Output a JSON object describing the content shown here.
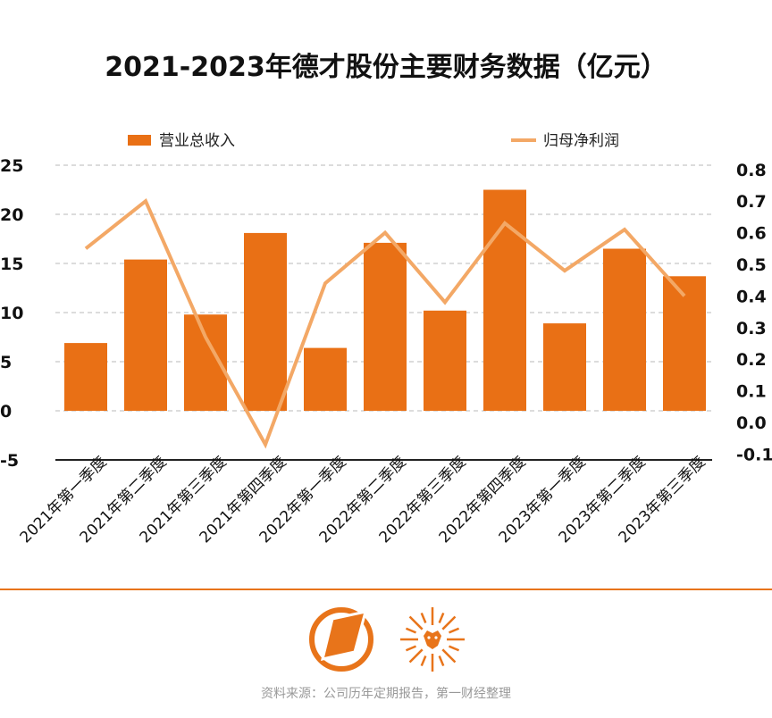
{
  "colors": {
    "bar": "#e97015",
    "line": "#f3a866",
    "accent": "#e8741a"
  },
  "logos": [
    "compass-logo",
    "lion-sun-logo"
  ],
  "footer": {
    "source": "资料来源：公司历年定期报告，第一财经整理"
  },
  "chart_data": {
    "type": "bar+line",
    "title": "2021-2023年德才股份主要财务数据（亿元）",
    "categories": [
      "2021年第一季度",
      "2021年第二季度",
      "2021年第三季度",
      "2021年第四季度",
      "2022年第一季度",
      "2022年第二季度",
      "2022年第三季度",
      "2022年第四季度",
      "2023年第一季度",
      "2023年第二季度",
      "2023年第三季度"
    ],
    "series": [
      {
        "name": "营业总收入",
        "type": "bar",
        "axis": "left",
        "values": [
          6.9,
          15.4,
          9.8,
          18.1,
          6.4,
          17.1,
          10.2,
          22.5,
          8.9,
          16.5,
          13.7
        ]
      },
      {
        "name": "归母净利润",
        "type": "line",
        "axis": "right",
        "values": [
          0.55,
          0.7,
          0.27,
          -0.07,
          0.44,
          0.6,
          0.38,
          0.63,
          0.48,
          0.61,
          0.4
        ]
      }
    ],
    "left_axis": {
      "ylim": [
        -5,
        25
      ],
      "ticks": [
        "25",
        "20",
        "15",
        "10",
        "5",
        "0",
        "-5"
      ],
      "tick_values": [
        25,
        20,
        15,
        10,
        5,
        0,
        -5
      ]
    },
    "right_axis": {
      "ylim": [
        -0.1,
        0.8
      ],
      "ticks": [
        "0.8",
        "0.7",
        "0.6",
        "0.5",
        "0.4",
        "0.3",
        "0.2",
        "0.1",
        "0.0",
        "-0.1"
      ],
      "tick_values": [
        0.8,
        0.7,
        0.6,
        0.5,
        0.4,
        0.3,
        0.2,
        0.1,
        0.0,
        -0.1
      ]
    },
    "grid": true,
    "legend": "top"
  }
}
